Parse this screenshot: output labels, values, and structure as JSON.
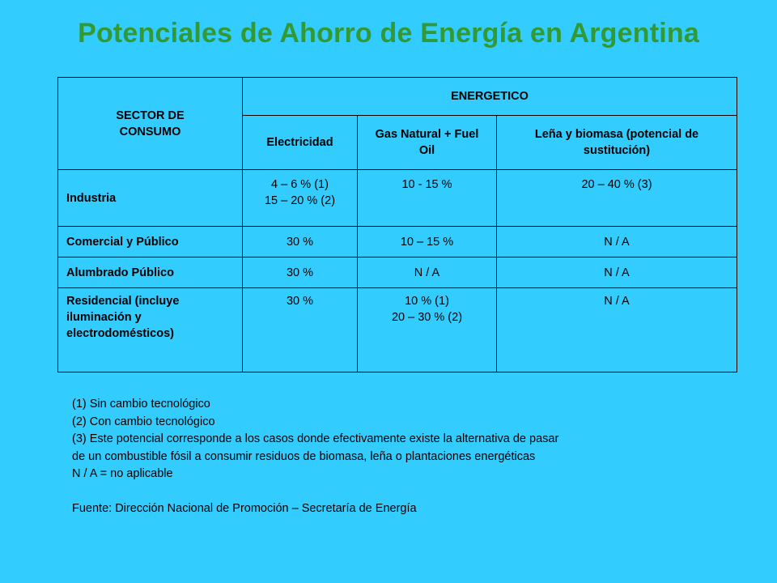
{
  "title": "Potenciales de Ahorro de Energía en Argentina",
  "table": {
    "sector_header": "SECTOR DE CONSUMO",
    "energetico_header": "ENERGETICO",
    "columns": [
      "Electricidad",
      "Gas Natural + Fuel Oil",
      "Leña y biomasa (potencial de sustitución)"
    ],
    "rows": [
      {
        "sector": "Industria",
        "electricidad": [
          "4 – 6 %  (1)",
          "15 – 20 %  (2)"
        ],
        "gas": [
          "10 - 15 %"
        ],
        "lena": [
          "20 – 40 %  (3)"
        ]
      },
      {
        "sector": "Comercial y Público",
        "electricidad": [
          "30 %"
        ],
        "gas": [
          "10 – 15 %"
        ],
        "lena": [
          "N / A"
        ]
      },
      {
        "sector": "Alumbrado Público",
        "electricidad": [
          "30 %"
        ],
        "gas": [
          "N / A"
        ],
        "lena": [
          "N / A"
        ]
      },
      {
        "sector": "Residencial (incluye iluminación y electrodomésticos)",
        "electricidad": [
          "30 %"
        ],
        "gas": [
          "10 %  (1)",
          "20 – 30  % (2)"
        ],
        "lena": [
          "N / A"
        ]
      }
    ]
  },
  "notes": [
    "(1)  Sin cambio tecnológico",
    "(2)  Con cambio tecnológico",
    "(3) Este potencial corresponde a los casos donde efectivamente existe la alternativa de pasar",
    "de un combustible fósil a consumir residuos de biomasa, leña o plantaciones energéticas",
    "N / A = no aplicable"
  ],
  "source": "Fuente: Dirección Nacional de Promoción – Secretaría de Energía"
}
